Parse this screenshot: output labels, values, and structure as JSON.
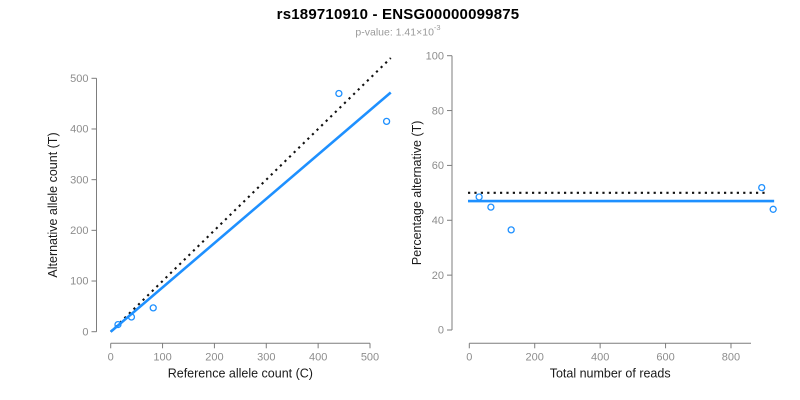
{
  "header": {
    "title": "rs189710910 - ENSG00000099875",
    "subtitle_text": "p-value: 1.41×10",
    "subtitle_exponent": "-3"
  },
  "colors": {
    "accent_blue": "#1e90ff",
    "dotted_line_black": "#111111",
    "tick_label_gray": "#8d8d8d",
    "axis_line_gray": "#7d7d7d",
    "axis_title_black": "#1a1a1a",
    "subtitle_gray": "#9a9a9a"
  },
  "chart_data": [
    {
      "id": "allele-count-scatter",
      "type": "scatter",
      "xlabel": "Reference allele count (C)",
      "ylabel": "Alternative allele count (T)",
      "xlim": [
        0,
        540
      ],
      "ylim": [
        0,
        540
      ],
      "xticks": [
        0,
        100,
        200,
        300,
        400,
        500
      ],
      "yticks": [
        0,
        100,
        200,
        300,
        400,
        500
      ],
      "grid": false,
      "legend": "none",
      "points": [
        [
          14,
          14
        ],
        [
          40,
          29
        ],
        [
          82,
          47
        ],
        [
          440,
          470
        ],
        [
          532,
          415
        ]
      ],
      "lines": [
        {
          "name": "expected-50-50-line",
          "style": "dotted",
          "color": "#111111",
          "x": [
            0,
            540
          ],
          "y": [
            0,
            540
          ]
        },
        {
          "name": "fitted-regression-line",
          "style": "solid",
          "color": "#1e90ff",
          "x": [
            0,
            540
          ],
          "y": [
            0,
            472
          ]
        }
      ]
    },
    {
      "id": "percentage-alternative-scatter",
      "type": "scatter",
      "xlabel": "Total number of reads",
      "ylabel": "Percentage alternative (T)",
      "xlim": [
        0,
        935
      ],
      "ylim": [
        0,
        100
      ],
      "xticks": [
        0,
        200,
        400,
        600,
        800
      ],
      "yticks": [
        0,
        20,
        40,
        60,
        80,
        100
      ],
      "grid": false,
      "legend": "none",
      "points": [
        [
          30,
          48.5
        ],
        [
          66,
          44.8
        ],
        [
          128,
          36.5
        ],
        [
          894,
          51.9
        ],
        [
          929,
          44.0
        ]
      ],
      "lines": [
        {
          "name": "expected-50pct-line",
          "style": "dotted",
          "color": "#111111",
          "x": [
            -4,
            914
          ],
          "y": [
            50,
            50
          ]
        },
        {
          "name": "mean-percentage-line",
          "style": "solid",
          "color": "#1e90ff",
          "x": [
            -4,
            932
          ],
          "y": [
            47,
            47
          ]
        }
      ]
    }
  ]
}
